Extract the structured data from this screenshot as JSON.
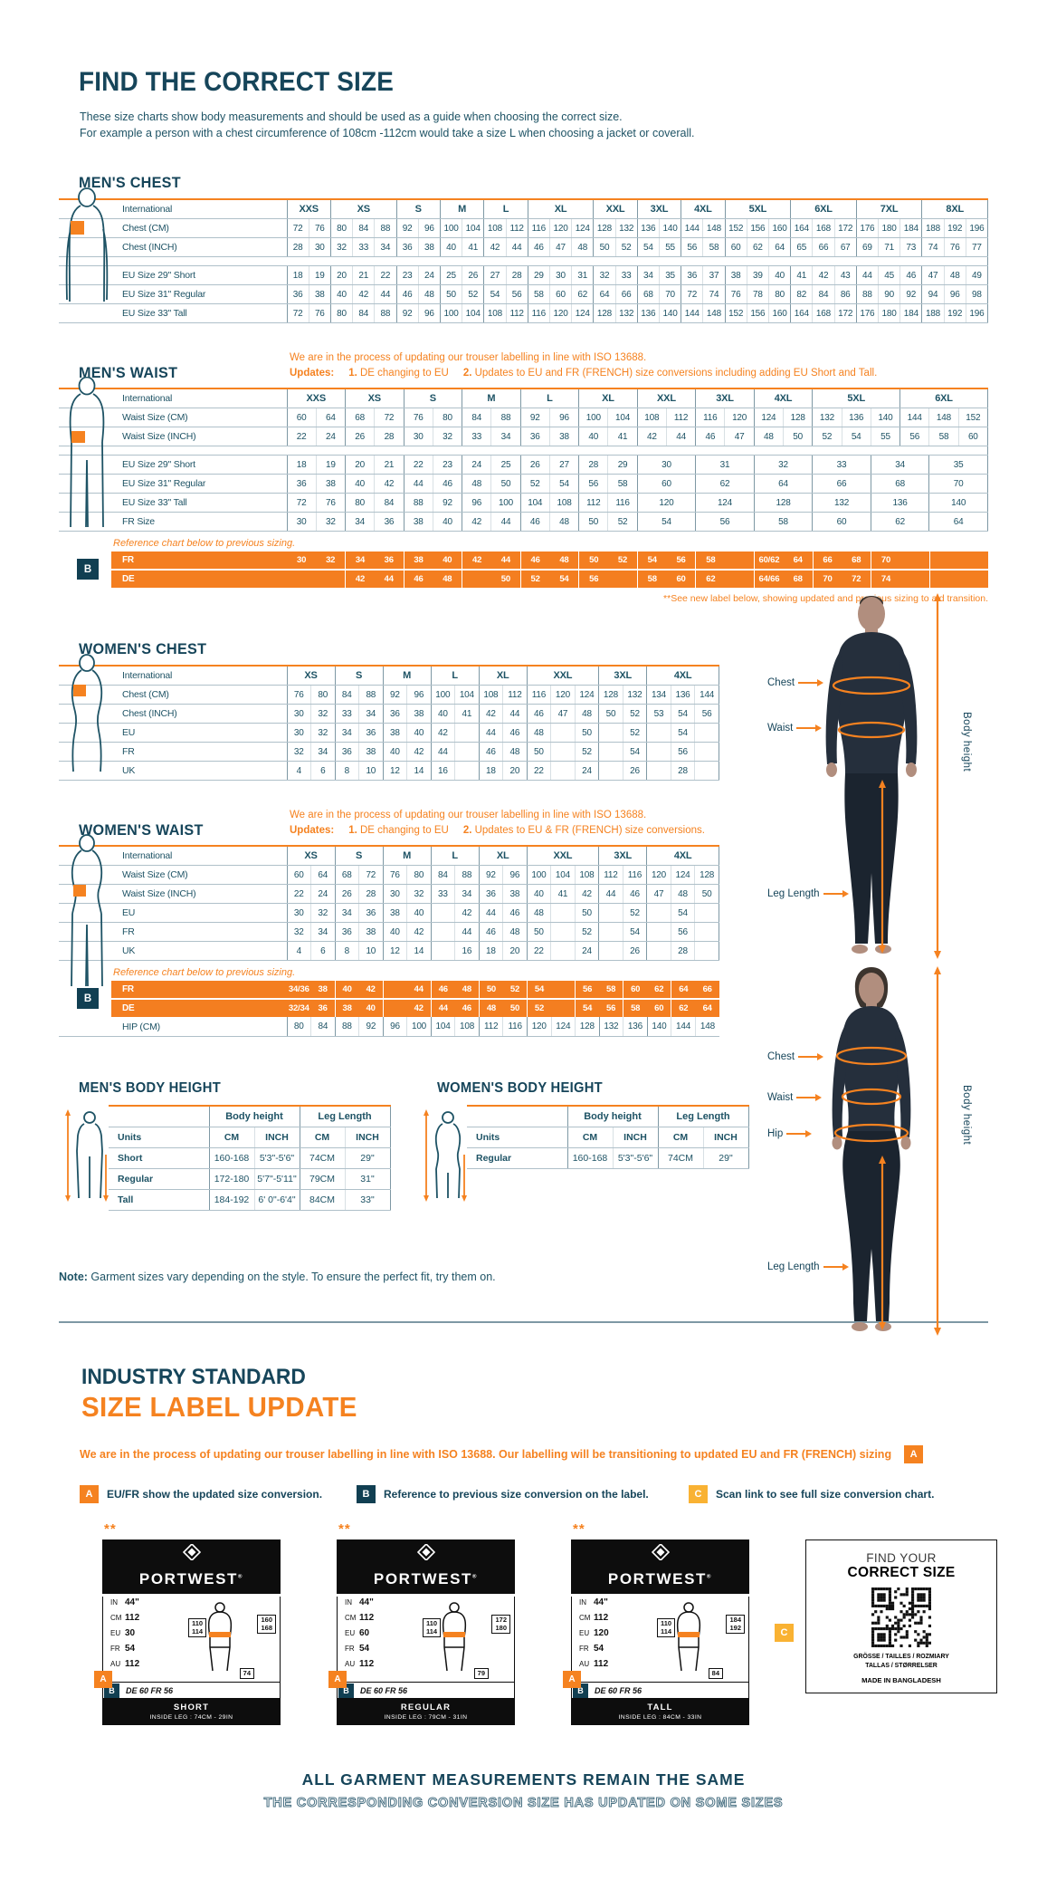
{
  "page": {
    "title": "FIND THE CORRECT SIZE",
    "intro1": "These size charts show body measurements and should be used as a guide when choosing the correct size.",
    "intro2": "For example a person with a chest circumference of 108cm -112cm would take a size L when choosing a jacket or coverall.",
    "note_label": "Note:",
    "note_text": " Garment sizes vary depending on the style. To ensure the perfect fit, try them on."
  },
  "figures": {
    "men": {
      "chest": "Chest",
      "waist": "Waist",
      "leg": "Leg Length",
      "height": "Body height"
    },
    "women": {
      "chest": "Chest",
      "waist": "Waist",
      "hip": "Hip",
      "leg": "Leg Length",
      "height": "Body height"
    }
  },
  "mens_chest": {
    "heading": "MEN'S CHEST",
    "corner_label": "International",
    "sizes": [
      {
        "l": "XXS",
        "s": 2
      },
      {
        "l": "XS",
        "s": 3
      },
      {
        "l": "S",
        "s": 2
      },
      {
        "l": "M",
        "s": 2
      },
      {
        "l": "L",
        "s": 2
      },
      {
        "l": "XL",
        "s": 3
      },
      {
        "l": "XXL",
        "s": 2
      },
      {
        "l": "3XL",
        "s": 2
      },
      {
        "l": "4XL",
        "s": 2
      },
      {
        "l": "5XL",
        "s": 3
      },
      {
        "l": "6XL",
        "s": 3
      },
      {
        "l": "7XL",
        "s": 3
      },
      {
        "l": "8XL",
        "s": 3
      }
    ],
    "rows": [
      {
        "label": "Chest (CM)",
        "cells": [
          72,
          76,
          80,
          84,
          88,
          92,
          96,
          100,
          104,
          108,
          112,
          116,
          120,
          124,
          128,
          132,
          136,
          140,
          144,
          148,
          152,
          156,
          160,
          164,
          168,
          172,
          176,
          180,
          184,
          188,
          192,
          196
        ]
      },
      {
        "label": "Chest (INCH)",
        "cells": [
          28,
          30,
          32,
          33,
          34,
          36,
          38,
          40,
          41,
          42,
          44,
          46,
          47,
          48,
          50,
          52,
          54,
          55,
          56,
          58,
          60,
          62,
          64,
          65,
          66,
          67,
          69,
          71,
          73,
          74,
          76,
          77
        ]
      },
      {
        "gap": true
      },
      {
        "label": "EU Size 29\" Short",
        "cells": [
          18,
          19,
          20,
          21,
          22,
          23,
          24,
          25,
          26,
          27,
          28,
          29,
          30,
          31,
          32,
          33,
          34,
          35,
          36,
          37,
          38,
          39,
          40,
          41,
          42,
          43,
          44,
          45,
          46,
          47,
          48,
          49
        ]
      },
      {
        "label": "EU Size 31\" Regular",
        "cells": [
          36,
          38,
          40,
          42,
          44,
          46,
          48,
          50,
          52,
          54,
          56,
          58,
          60,
          62,
          64,
          66,
          68,
          70,
          72,
          74,
          76,
          78,
          80,
          82,
          84,
          86,
          88,
          90,
          92,
          94,
          96,
          98
        ]
      },
      {
        "label": "EU Size 33\" Tall",
        "cells": [
          72,
          76,
          80,
          84,
          88,
          92,
          96,
          100,
          104,
          108,
          112,
          116,
          120,
          124,
          128,
          132,
          136,
          140,
          144,
          148,
          152,
          156,
          160,
          164,
          168,
          172,
          176,
          180,
          184,
          188,
          192,
          196
        ]
      }
    ]
  },
  "mens_waist": {
    "heading": "MEN'S WAIST",
    "iso_note": "We are in the process of updating our trouser labelling in line with ISO 13688.",
    "updates_label": "Updates:",
    "u1n": "1.",
    "u1": " DE changing to EU",
    "u2n": "2.",
    "u2": " Updates to EU and FR (FRENCH) size conversions including adding EU Short and Tall.",
    "corner_label": "International",
    "sizes": [
      {
        "l": "XXS",
        "s": 2
      },
      {
        "l": "XS",
        "s": 2
      },
      {
        "l": "S",
        "s": 2
      },
      {
        "l": "M",
        "s": 2
      },
      {
        "l": "L",
        "s": 2
      },
      {
        "l": "XL",
        "s": 2
      },
      {
        "l": "XXL",
        "s": 2
      },
      {
        "l": "3XL",
        "s": 2
      },
      {
        "l": "4XL",
        "s": 2
      },
      {
        "l": "5XL",
        "s": 3
      },
      {
        "l": "6XL",
        "s": 3
      }
    ],
    "rows": [
      {
        "label": "Waist Size (CM)",
        "cells": [
          60,
          64,
          68,
          72,
          76,
          80,
          84,
          88,
          92,
          96,
          100,
          104,
          108,
          112,
          116,
          120,
          124,
          128,
          132,
          136,
          140,
          144,
          148,
          152
        ]
      },
      {
        "label": "Waist Size (INCH)",
        "cells": [
          22,
          24,
          26,
          28,
          30,
          32,
          33,
          34,
          36,
          38,
          40,
          41,
          42,
          44,
          46,
          47,
          48,
          50,
          52,
          54,
          55,
          56,
          58,
          60
        ]
      },
      {
        "gap": true
      },
      {
        "label": "EU Size 29\" Short",
        "pairs": [
          18,
          19,
          20,
          21,
          22,
          23,
          24,
          25,
          26,
          27,
          28,
          29
        ],
        "wide": [
          "30",
          "31",
          "32",
          "33",
          "34",
          "35"
        ]
      },
      {
        "label": "EU Size 31\" Regular",
        "pairs": [
          36,
          38,
          40,
          42,
          44,
          46,
          48,
          50,
          52,
          54,
          56,
          58
        ],
        "wide": [
          "60",
          "62",
          "64",
          "66",
          "68",
          "70"
        ]
      },
      {
        "label": "EU Size 33\" Tall",
        "pairs": [
          72,
          76,
          80,
          84,
          88,
          92,
          96,
          100,
          104,
          108,
          112,
          116
        ],
        "wide": [
          "120",
          "124",
          "128",
          "132",
          "136",
          "140"
        ]
      },
      {
        "label": "FR Size",
        "pairs": [
          30,
          32,
          34,
          36,
          38,
          40,
          42,
          44,
          46,
          48,
          50,
          52
        ],
        "wide": [
          "54",
          "56",
          "58",
          "60",
          "62",
          "64"
        ]
      }
    ],
    "reference_note": "Reference chart below to previous sizing.",
    "b_badge": "B",
    "orange_rows": [
      {
        "label": "FR",
        "cells": [
          "30",
          "32",
          "34",
          "36",
          "38",
          "40",
          "42",
          "44",
          "46",
          "48",
          "50",
          "52",
          "54",
          "56",
          "58",
          "",
          "60/62",
          "64",
          "66",
          "68",
          "70",
          "",
          "",
          ""
        ]
      },
      {
        "label": "DE",
        "cells": [
          "",
          "",
          "42",
          "44",
          "46",
          "48",
          "",
          "50",
          "52",
          "54",
          "56",
          "",
          "58",
          "60",
          "62",
          "",
          "64/66",
          "68",
          "70",
          "72",
          "74",
          "",
          "",
          ""
        ]
      }
    ],
    "see_note": "**See new label below, showing updated and previous sizing to aid transition."
  },
  "womens_chest": {
    "heading": "WOMEN'S CHEST",
    "corner_label": "International",
    "sizes": [
      {
        "l": "XS",
        "s": 2
      },
      {
        "l": "S",
        "s": 2
      },
      {
        "l": "M",
        "s": 2
      },
      {
        "l": "L",
        "s": 2
      },
      {
        "l": "XL",
        "s": 2
      },
      {
        "l": "XXL",
        "s": 3
      },
      {
        "l": "3XL",
        "s": 2
      },
      {
        "l": "4XL",
        "s": 3
      }
    ],
    "rows": [
      {
        "label": "Chest (CM)",
        "cells": [
          76,
          80,
          84,
          88,
          92,
          96,
          100,
          104,
          108,
          112,
          116,
          120,
          124,
          128,
          132,
          134,
          136,
          144
        ]
      },
      {
        "label": "Chest (INCH)",
        "cells": [
          30,
          32,
          33,
          34,
          36,
          38,
          40,
          41,
          42,
          44,
          46,
          47,
          48,
          50,
          52,
          53,
          54,
          56
        ]
      },
      {
        "label": "EU",
        "cells": [
          30,
          32,
          34,
          36,
          38,
          40,
          42,
          "",
          44,
          46,
          48,
          "",
          50,
          "",
          52,
          "",
          54,
          ""
        ]
      },
      {
        "label": "FR",
        "cells": [
          32,
          34,
          36,
          38,
          40,
          42,
          44,
          "",
          46,
          48,
          50,
          "",
          52,
          "",
          54,
          "",
          56,
          ""
        ]
      },
      {
        "label": "UK",
        "cells": [
          4,
          6,
          8,
          10,
          12,
          14,
          16,
          "",
          18,
          20,
          22,
          "",
          24,
          "",
          26,
          "",
          28,
          ""
        ]
      }
    ]
  },
  "womens_waist": {
    "heading": "WOMEN'S WAIST",
    "iso_note": "We are in the process of updating our trouser labelling in line with ISO 13688.",
    "updates_label": "Updates:",
    "u1n": "1.",
    "u1": " DE changing to EU",
    "u2n": "2.",
    "u2": " Updates to EU & FR (FRENCH) size conversions.",
    "corner_label": "International",
    "sizes": [
      {
        "l": "XS",
        "s": 2
      },
      {
        "l": "S",
        "s": 2
      },
      {
        "l": "M",
        "s": 2
      },
      {
        "l": "L",
        "s": 2
      },
      {
        "l": "XL",
        "s": 2
      },
      {
        "l": "XXL",
        "s": 3
      },
      {
        "l": "3XL",
        "s": 2
      },
      {
        "l": "4XL",
        "s": 3
      }
    ],
    "rows": [
      {
        "label": "Waist Size (CM)",
        "cells": [
          60,
          64,
          68,
          72,
          76,
          80,
          84,
          88,
          92,
          96,
          100,
          104,
          108,
          112,
          116,
          120,
          124,
          128
        ]
      },
      {
        "label": "Waist Size (INCH)",
        "cells": [
          22,
          24,
          26,
          28,
          30,
          32,
          33,
          34,
          36,
          38,
          40,
          41,
          42,
          44,
          46,
          47,
          48,
          50
        ]
      },
      {
        "label": "EU",
        "cells": [
          30,
          32,
          34,
          36,
          38,
          40,
          "",
          42,
          44,
          46,
          48,
          "",
          50,
          "",
          52,
          "",
          54,
          ""
        ]
      },
      {
        "label": "FR",
        "cells": [
          32,
          34,
          36,
          38,
          40,
          42,
          "",
          44,
          46,
          48,
          50,
          "",
          52,
          "",
          54,
          "",
          56,
          ""
        ]
      },
      {
        "label": "UK",
        "cells": [
          4,
          6,
          8,
          10,
          12,
          14,
          "",
          16,
          18,
          20,
          22,
          "",
          24,
          "",
          26,
          "",
          28,
          ""
        ]
      }
    ],
    "reference_note": "Reference chart below to previous sizing.",
    "b_badge": "B",
    "orange_rows": [
      {
        "label": "FR",
        "cells": [
          "34/36",
          "38",
          "40",
          "42",
          "",
          "44",
          "46",
          "48",
          "50",
          "52",
          "54",
          "",
          "56",
          "58",
          "60",
          "62",
          "64",
          "66"
        ]
      },
      {
        "label": "DE",
        "cells": [
          "32/34",
          "36",
          "38",
          "40",
          "",
          "42",
          "44",
          "46",
          "48",
          "50",
          "52",
          "",
          "54",
          "56",
          "58",
          "60",
          "62",
          "64"
        ]
      }
    ],
    "hip_row": {
      "label": "HIP (CM)",
      "cells": [
        80,
        84,
        88,
        92,
        96,
        100,
        104,
        108,
        112,
        116,
        120,
        124,
        128,
        132,
        136,
        140,
        144,
        148
      ]
    }
  },
  "mens_body_height": {
    "heading": "MEN'S BODY HEIGHT",
    "group1": "Body height",
    "group2": "Leg Length",
    "units_label": "Units",
    "unit_cols": [
      "CM",
      "INCH",
      "CM",
      "INCH"
    ],
    "rows": [
      {
        "label": "Short",
        "cells": [
          "160-168",
          "5'3\"-5'6\"",
          "74CM",
          "29\""
        ]
      },
      {
        "label": "Regular",
        "cells": [
          "172-180",
          "5'7\"-5'11\"",
          "79CM",
          "31\""
        ]
      },
      {
        "label": "Tall",
        "cells": [
          "184-192",
          "6' 0\"-6'4\"",
          "84CM",
          "33\""
        ]
      }
    ]
  },
  "womens_body_height": {
    "heading": "WOMEN'S BODY HEIGHT",
    "group1": "Body height",
    "group2": "Leg Length",
    "units_label": "Units",
    "unit_cols": [
      "CM",
      "INCH",
      "CM",
      "INCH"
    ],
    "rows": [
      {
        "label": "Regular",
        "cells": [
          "160-168",
          "5'3\"-5'6\"",
          "74CM",
          "29\""
        ]
      }
    ]
  },
  "industry": {
    "title1": "INDUSTRY STANDARD",
    "title2": "SIZE LABEL UPDATE",
    "para": "We are in the process of updating our trouser labelling in line with ISO 13688. Our labelling will be transitioning to updated EU and FR (FRENCH) sizing",
    "para_badge": "A",
    "legend_a": {
      "badge": "A",
      "text": "EU/FR show the updated size conversion."
    },
    "legend_b": {
      "badge": "B",
      "text": "Reference to previous size conversion on the label."
    },
    "legend_c": {
      "badge": "C",
      "text": "Scan link to see full size conversion chart."
    },
    "cards": [
      {
        "stars": "**",
        "brand": "PORTWEST",
        "a_badge": "A",
        "b_badge": "B",
        "rows": [
          {
            "k": "IN",
            "v": "44\""
          },
          {
            "k": "CM",
            "v": "112"
          },
          {
            "k": "EU",
            "v": "30"
          },
          {
            "k": "FR",
            "v": "54"
          },
          {
            "k": "AU",
            "v": "112"
          }
        ],
        "waist_box": [
          "110",
          "114"
        ],
        "height_box": [
          "160",
          "168"
        ],
        "leg_box": "74",
        "prev": "DE 60 FR 56",
        "fit": "SHORT",
        "inside_leg": "INSIDE LEG : 74CM - 29IN"
      },
      {
        "stars": "**",
        "brand": "PORTWEST",
        "a_badge": "A",
        "b_badge": "B",
        "rows": [
          {
            "k": "IN",
            "v": "44\""
          },
          {
            "k": "CM",
            "v": "112"
          },
          {
            "k": "EU",
            "v": "60"
          },
          {
            "k": "FR",
            "v": "54"
          },
          {
            "k": "AU",
            "v": "112"
          }
        ],
        "waist_box": [
          "110",
          "114"
        ],
        "height_box": [
          "172",
          "180"
        ],
        "leg_box": "79",
        "prev": "DE 60 FR 56",
        "fit": "REGULAR",
        "inside_leg": "INSIDE LEG : 79CM - 31IN"
      },
      {
        "stars": "**",
        "brand": "PORTWEST",
        "a_badge": "A",
        "b_badge": "B",
        "rows": [
          {
            "k": "IN",
            "v": "44\""
          },
          {
            "k": "CM",
            "v": "112"
          },
          {
            "k": "EU",
            "v": "120"
          },
          {
            "k": "FR",
            "v": "54"
          },
          {
            "k": "AU",
            "v": "112"
          }
        ],
        "waist_box": [
          "110",
          "114"
        ],
        "height_box": [
          "184",
          "192"
        ],
        "leg_box": "84",
        "prev": "DE 60 FR 56",
        "fit": "TALL",
        "inside_leg": "INSIDE LEG : 84CM - 33IN"
      }
    ],
    "c_badge": "C",
    "qr_card": {
      "line1": "FIND YOUR",
      "line2": "CORRECT SIZE",
      "lang1": "GRÖSSE / TAILLES / ROZMIARY",
      "lang2": "TALLAS / STØRRELSER",
      "made": "MADE IN BANGLADESH"
    },
    "bottom1": "ALL GARMENT MEASUREMENTS REMAIN THE SAME",
    "bottom2": "THE CORRESPONDING CONVERSION SIZE HAS UPDATED ON SOME SIZES"
  }
}
